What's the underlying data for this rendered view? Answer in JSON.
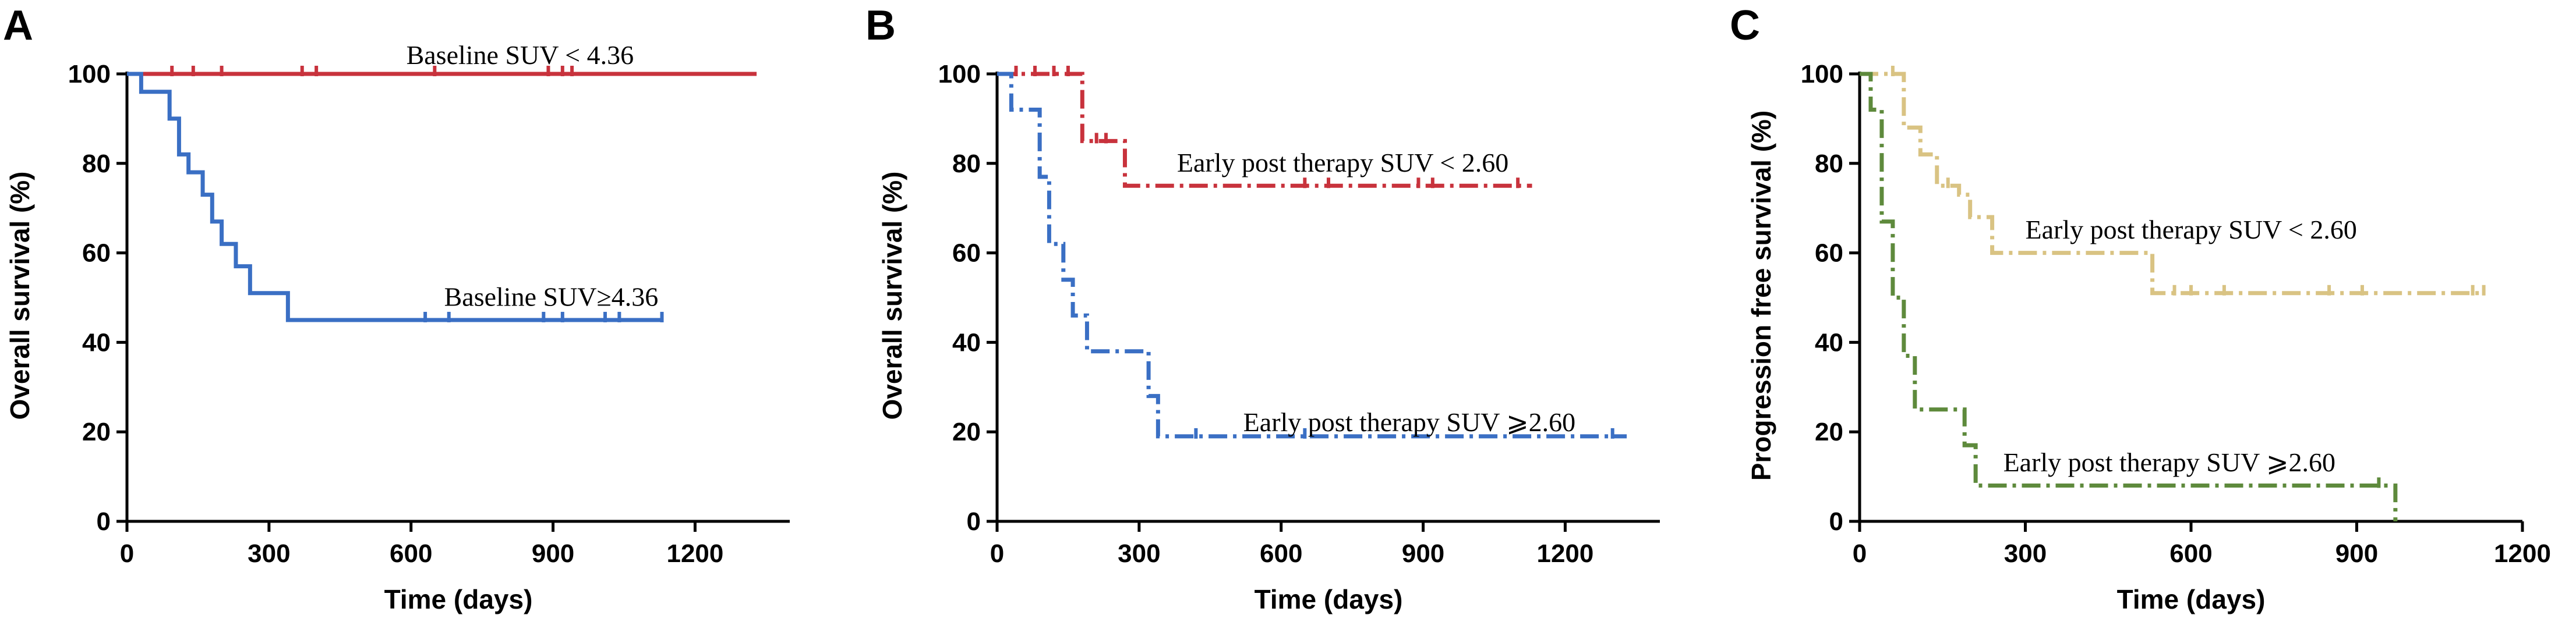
{
  "chart_data": [
    {
      "panel": "A",
      "type": "line",
      "title": "",
      "xlabel": "Time (days)",
      "ylabel": "Overall survival (%)",
      "xlim": [
        0,
        1400
      ],
      "ylim": [
        0,
        100
      ],
      "xticks": [
        0,
        300,
        600,
        900,
        1200
      ],
      "yticks": [
        0,
        20,
        40,
        60,
        80,
        100
      ],
      "series": [
        {
          "name": "Baseline SUV < 4.36",
          "color": "#c8323c",
          "style": "solid",
          "x": [
            0,
            1330
          ],
          "y": [
            100,
            100
          ],
          "censor_x": [
            95,
            140,
            200,
            370,
            400,
            650,
            890,
            920,
            940
          ],
          "label_x": 590,
          "label_y": 104
        },
        {
          "name": "Baseline SUV≥4.36",
          "color": "#3a6fc4",
          "style": "solid",
          "x": [
            0,
            30,
            90,
            110,
            130,
            160,
            180,
            200,
            230,
            260,
            340,
            1130
          ],
          "y": [
            100,
            96,
            90,
            82,
            78,
            73,
            67,
            62,
            57,
            51,
            45,
            45
          ],
          "censor_x": [
            630,
            680,
            880,
            920,
            1010,
            1040,
            1130
          ],
          "label_x": 670,
          "label_y": 50
        }
      ]
    },
    {
      "panel": "B",
      "type": "line",
      "title": "",
      "xlabel": "Time (days)",
      "ylabel": "Overall survival (%)",
      "xlim": [
        0,
        1400
      ],
      "ylim": [
        0,
        100
      ],
      "xticks": [
        0,
        300,
        600,
        900,
        1200
      ],
      "yticks": [
        0,
        20,
        40,
        60,
        80,
        100
      ],
      "series": [
        {
          "name": "Early post therapy SUV  < 2.60",
          "color": "#c8323c",
          "style": "dashdot",
          "x": [
            0,
            180,
            270,
            1130
          ],
          "y": [
            100,
            85,
            75,
            75
          ],
          "censor_x": [
            40,
            80,
            120,
            150,
            210,
            230,
            650,
            700,
            890,
            920,
            1100
          ],
          "label_x": 380,
          "label_y": 80
        },
        {
          "name": "Early post therapy SUV ⩾2.60",
          "color": "#3a6fc4",
          "style": "dashdot",
          "x": [
            0,
            30,
            90,
            110,
            140,
            160,
            190,
            320,
            340,
            1330
          ],
          "y": [
            100,
            92,
            77,
            62,
            54,
            46,
            38,
            28,
            19,
            19
          ],
          "censor_x": [
            420,
            650,
            1300
          ],
          "label_x": 520,
          "label_y": 22
        }
      ]
    },
    {
      "panel": "C",
      "type": "line",
      "title": "",
      "xlabel": "Time (days)",
      "ylabel": "Progression free survival (%)",
      "xlim": [
        0,
        1200
      ],
      "ylim": [
        0,
        100
      ],
      "xticks": [
        0,
        300,
        600,
        900,
        1200
      ],
      "yticks": [
        0,
        20,
        40,
        60,
        80,
        100
      ],
      "series": [
        {
          "name": "Early post therapy SUV  < 2.60",
          "color": "#d9c383",
          "style": "dashdot",
          "x": [
            0,
            80,
            110,
            140,
            180,
            200,
            240,
            530,
            1130
          ],
          "y": [
            100,
            88,
            82,
            75,
            73,
            68,
            60,
            51,
            51
          ],
          "censor_x": [
            60,
            160,
            570,
            600,
            660,
            850,
            910,
            1110,
            1130
          ],
          "label_x": 300,
          "label_y": 65
        },
        {
          "name": "Early post therapy SUV ⩾2.60",
          "color": "#5e8a3c",
          "style": "dashdot",
          "x": [
            0,
            20,
            40,
            60,
            80,
            100,
            190,
            210,
            970,
            970
          ],
          "y": [
            100,
            92,
            67,
            50,
            37,
            25,
            17,
            8,
            8,
            0
          ],
          "censor_x": [
            940
          ],
          "label_x": 260,
          "label_y": 13
        }
      ]
    }
  ]
}
